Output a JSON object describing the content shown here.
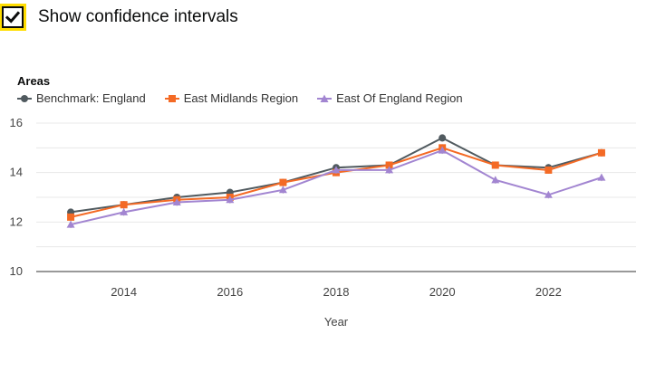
{
  "toggle": {
    "label": "Show confidence intervals",
    "checked": true
  },
  "areas_heading": "Areas",
  "chart_data": {
    "type": "line",
    "title": "",
    "xlabel": "Year",
    "ylabel": "",
    "x": [
      2013,
      2014,
      2015,
      2016,
      2017,
      2018,
      2019,
      2020,
      2021,
      2022,
      2023
    ],
    "xticks": [
      "2014",
      "2016",
      "2018",
      "2020",
      "2022"
    ],
    "xlim": [
      2012.35,
      2023.65
    ],
    "ylim": [
      10,
      16
    ],
    "yticks": [
      "10",
      "12",
      "14",
      "16"
    ],
    "grid": true,
    "legend_position": "top-left",
    "series": [
      {
        "name": "Benchmark: England",
        "color": "#505a5f",
        "marker": "circle",
        "values": [
          12.4,
          12.7,
          13.0,
          13.2,
          13.6,
          14.2,
          14.3,
          15.4,
          14.3,
          14.2,
          14.8
        ]
      },
      {
        "name": "East Midlands Region",
        "color": "#f46a25",
        "marker": "square",
        "values": [
          12.2,
          12.7,
          12.9,
          13.0,
          13.6,
          14.0,
          14.3,
          15.0,
          14.3,
          14.1,
          14.8
        ]
      },
      {
        "name": "East Of England Region",
        "color": "#a285d1",
        "marker": "triangle",
        "values": [
          11.9,
          12.4,
          12.8,
          12.9,
          13.3,
          14.1,
          14.1,
          14.9,
          13.7,
          13.1,
          13.8
        ]
      }
    ]
  }
}
